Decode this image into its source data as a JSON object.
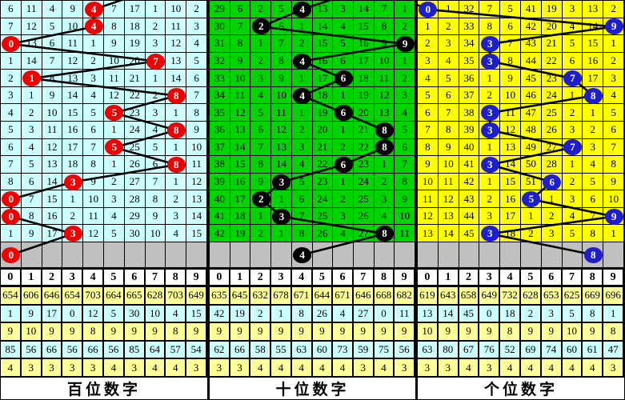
{
  "chart_data": {
    "type": "table",
    "title": "3D lottery digit trend chart (hundreds / tens / units)",
    "columns": [
      "0",
      "1",
      "2",
      "3",
      "4",
      "5",
      "6",
      "7",
      "8",
      "9"
    ],
    "colors": {
      "pending_row": "#C0C0C0",
      "trend_line": "#000000",
      "header_bg": "#FFFFFF",
      "stats_row_colors": [
        "#FFFF99",
        "#CCFFFF",
        "#FFFF99",
        "#CCFFFF",
        "#FFFF99"
      ]
    },
    "panels": [
      {
        "title": "百位数字",
        "bg": "#CCFFFF",
        "ball_color": "#EE0000",
        "rows": [
          {
            "cells": [
              "6",
              "11",
              "4",
              "9",
              "4",
              "7",
              "17",
              "1",
              "10",
              "2"
            ],
            "ball": 4
          },
          {
            "cells": [
              "7",
              "12",
              "5",
              "10",
              "4",
              "8",
              "18",
              "2",
              "11",
              "3"
            ],
            "ball": 4
          },
          {
            "cells": [
              "0",
              "13",
              "6",
              "11",
              "1",
              "9",
              "19",
              "3",
              "12",
              "4"
            ],
            "ball": 0
          },
          {
            "cells": [
              "1",
              "14",
              "7",
              "12",
              "2",
              "10",
              "20",
              "7",
              "13",
              "5"
            ],
            "ball": 7
          },
          {
            "cells": [
              "2",
              "1",
              "8",
              "13",
              "3",
              "11",
              "21",
              "1",
              "14",
              "6"
            ],
            "ball": 1
          },
          {
            "cells": [
              "3",
              "1",
              "9",
              "14",
              "4",
              "12",
              "22",
              "2",
              "8",
              "7"
            ],
            "ball": 8
          },
          {
            "cells": [
              "4",
              "2",
              "10",
              "15",
              "5",
              "5",
              "23",
              "3",
              "1",
              "8"
            ],
            "ball": 5
          },
          {
            "cells": [
              "5",
              "3",
              "11",
              "16",
              "6",
              "1",
              "24",
              "4",
              "8",
              "9"
            ],
            "ball": 8
          },
          {
            "cells": [
              "6",
              "4",
              "12",
              "17",
              "7",
              "5",
              "25",
              "5",
              "1",
              "10"
            ],
            "ball": 5
          },
          {
            "cells": [
              "7",
              "5",
              "13",
              "18",
              "8",
              "1",
              "26",
              "6",
              "8",
              "11"
            ],
            "ball": 8
          },
          {
            "cells": [
              "8",
              "6",
              "14",
              "3",
              "9",
              "2",
              "27",
              "7",
              "1",
              "12"
            ],
            "ball": 3
          },
          {
            "cells": [
              "0",
              "7",
              "15",
              "1",
              "10",
              "3",
              "28",
              "8",
              "2",
              "13"
            ],
            "ball": 0
          },
          {
            "cells": [
              "0",
              "8",
              "16",
              "2",
              "11",
              "4",
              "29",
              "9",
              "3",
              "14"
            ],
            "ball": 0
          },
          {
            "cells": [
              "1",
              "9",
              "17",
              "3",
              "12",
              "5",
              "30",
              "10",
              "4",
              "15"
            ],
            "ball": 3
          }
        ],
        "pending_ball": 0,
        "stats": [
          [
            "654",
            "606",
            "646",
            "654",
            "703",
            "664",
            "665",
            "628",
            "703",
            "649"
          ],
          [
            "1",
            "9",
            "17",
            "0",
            "12",
            "5",
            "30",
            "10",
            "4",
            "15"
          ],
          [
            "9",
            "10",
            "9",
            "9",
            "8",
            "9",
            "9",
            "9",
            "8",
            "9"
          ],
          [
            "85",
            "56",
            "66",
            "56",
            "66",
            "56",
            "85",
            "64",
            "57",
            "54"
          ],
          [
            "4",
            "3",
            "3",
            "3",
            "3",
            "4",
            "3",
            "4",
            "4",
            "3"
          ]
        ]
      },
      {
        "title": "十位数字",
        "bg": "#00D400",
        "ball_color": "#000000",
        "rows": [
          {
            "cells": [
              "29",
              "6",
              "2",
              "5",
              "4",
              "13",
              "3",
              "14",
              "7",
              "1"
            ],
            "ball": 4
          },
          {
            "cells": [
              "30",
              "7",
              "2",
              "6",
              "1",
              "14",
              "4",
              "15",
              "8",
              "2"
            ],
            "ball": 2
          },
          {
            "cells": [
              "31",
              "8",
              "1",
              "7",
              "2",
              "15",
              "5",
              "16",
              "9",
              "9"
            ],
            "ball": 9
          },
          {
            "cells": [
              "32",
              "9",
              "2",
              "8",
              "4",
              "16",
              "6",
              "17",
              "10",
              "1"
            ],
            "ball": 4
          },
          {
            "cells": [
              "33",
              "10",
              "3",
              "9",
              "1",
              "17",
              "6",
              "18",
              "11",
              "2"
            ],
            "ball": 6
          },
          {
            "cells": [
              "34",
              "11",
              "4",
              "10",
              "4",
              "18",
              "1",
              "19",
              "12",
              "3"
            ],
            "ball": 4
          },
          {
            "cells": [
              "35",
              "12",
              "5",
              "11",
              "1",
              "19",
              "6",
              "20",
              "13",
              "4"
            ],
            "ball": 6
          },
          {
            "cells": [
              "36",
              "13",
              "6",
              "12",
              "2",
              "20",
              "1",
              "21",
              "8",
              "5"
            ],
            "ball": 8
          },
          {
            "cells": [
              "37",
              "14",
              "7",
              "13",
              "3",
              "21",
              "2",
              "22",
              "8",
              "6"
            ],
            "ball": 8
          },
          {
            "cells": [
              "38",
              "15",
              "8",
              "14",
              "4",
              "22",
              "6",
              "23",
              "1",
              "7"
            ],
            "ball": 6
          },
          {
            "cells": [
              "39",
              "16",
              "9",
              "3",
              "5",
              "23",
              "1",
              "24",
              "2",
              "8"
            ],
            "ball": 3
          },
          {
            "cells": [
              "40",
              "17",
              "2",
              "1",
              "6",
              "24",
              "2",
              "25",
              "3",
              "9"
            ],
            "ball": 2
          },
          {
            "cells": [
              "41",
              "18",
              "1",
              "3",
              "7",
              "25",
              "3",
              "26",
              "4",
              "10"
            ],
            "ball": 3
          },
          {
            "cells": [
              "42",
              "19",
              "2",
              "1",
              "8",
              "26",
              "4",
              "27",
              "8",
              "11"
            ],
            "ball": 8
          }
        ],
        "pending_ball": 4,
        "stats": [
          [
            "635",
            "645",
            "632",
            "678",
            "671",
            "644",
            "671",
            "646",
            "668",
            "682"
          ],
          [
            "42",
            "19",
            "2",
            "1",
            "8",
            "26",
            "4",
            "27",
            "0",
            "11"
          ],
          [
            "9",
            "9",
            "9",
            "9",
            "9",
            "9",
            "9",
            "9",
            "9",
            "9"
          ],
          [
            "62",
            "66",
            "58",
            "55",
            "63",
            "60",
            "73",
            "59",
            "75",
            "56"
          ],
          [
            "3",
            "3",
            "4",
            "4",
            "4",
            "4",
            "4",
            "3",
            "4",
            "3"
          ]
        ]
      },
      {
        "title": "个位数字",
        "bg": "#FFFF00",
        "ball_color": "#1E1ECC",
        "rows": [
          {
            "cells": [
              "0",
              "1",
              "32",
              "7",
              "5",
              "41",
              "19",
              "3",
              "13",
              "2"
            ],
            "ball": 0
          },
          {
            "cells": [
              "1",
              "2",
              "33",
              "8",
              "6",
              "42",
              "20",
              "4",
              "14",
              "9"
            ],
            "ball": 9
          },
          {
            "cells": [
              "2",
              "3",
              "34",
              "3",
              "7",
              "43",
              "21",
              "5",
              "15",
              "1"
            ],
            "ball": 3
          },
          {
            "cells": [
              "3",
              "4",
              "35",
              "3",
              "8",
              "44",
              "22",
              "6",
              "16",
              "2"
            ],
            "ball": 3
          },
          {
            "cells": [
              "4",
              "5",
              "36",
              "1",
              "9",
              "45",
              "23",
              "7",
              "17",
              "3"
            ],
            "ball": 7
          },
          {
            "cells": [
              "5",
              "6",
              "37",
              "2",
              "10",
              "46",
              "24",
              "1",
              "8",
              "4"
            ],
            "ball": 8
          },
          {
            "cells": [
              "6",
              "7",
              "38",
              "3",
              "11",
              "47",
              "25",
              "2",
              "1",
              "5"
            ],
            "ball": 3
          },
          {
            "cells": [
              "7",
              "8",
              "39",
              "3",
              "12",
              "48",
              "26",
              "3",
              "2",
              "6"
            ],
            "ball": 3
          },
          {
            "cells": [
              "8",
              "9",
              "40",
              "1",
              "13",
              "49",
              "27",
              "7",
              "3",
              "7"
            ],
            "ball": 7
          },
          {
            "cells": [
              "9",
              "10",
              "41",
              "3",
              "14",
              "50",
              "28",
              "1",
              "4",
              "8"
            ],
            "ball": 3
          },
          {
            "cells": [
              "10",
              "11",
              "42",
              "1",
              "15",
              "51",
              "6",
              "2",
              "5",
              "9"
            ],
            "ball": 6
          },
          {
            "cells": [
              "11",
              "12",
              "43",
              "2",
              "16",
              "5",
              "1",
              "3",
              "6",
              "10"
            ],
            "ball": 5
          },
          {
            "cells": [
              "12",
              "13",
              "44",
              "3",
              "17",
              "1",
              "2",
              "4",
              "7",
              "9"
            ],
            "ball": 9
          },
          {
            "cells": [
              "13",
              "14",
              "45",
              "3",
              "18",
              "2",
              "3",
              "5",
              "8",
              "1"
            ],
            "ball": 3
          }
        ],
        "pending_ball": 8,
        "stats": [
          [
            "619",
            "643",
            "658",
            "649",
            "732",
            "628",
            "653",
            "625",
            "669",
            "696"
          ],
          [
            "13",
            "14",
            "45",
            "0",
            "18",
            "2",
            "3",
            "5",
            "8",
            "1"
          ],
          [
            "10",
            "9",
            "9",
            "9",
            "8",
            "9",
            "9",
            "10",
            "9",
            "8"
          ],
          [
            "63",
            "80",
            "67",
            "76",
            "52",
            "69",
            "74",
            "60",
            "61",
            "47"
          ],
          [
            "3",
            "3",
            "4",
            "3",
            "4",
            "4",
            "4",
            "4",
            "4",
            "3"
          ]
        ]
      }
    ]
  }
}
